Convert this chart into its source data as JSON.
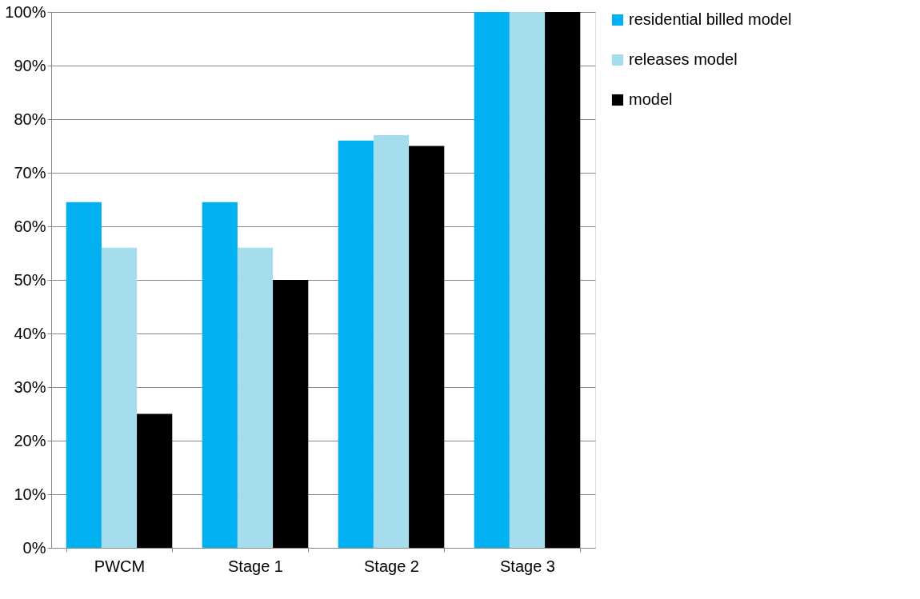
{
  "chart_data": {
    "type": "bar",
    "categories": [
      "PWCM",
      "Stage 1",
      "Stage 2",
      "Stage 3"
    ],
    "series": [
      {
        "name": "residential billed model",
        "color": "#00b0f0",
        "values": [
          64.5,
          64.5,
          76,
          100
        ]
      },
      {
        "name": "releases model",
        "color": "#a5dcee",
        "values": [
          56,
          56,
          77,
          100
        ]
      },
      {
        "name": "model",
        "color": "#000000",
        "values": [
          25,
          50,
          75,
          100
        ]
      }
    ],
    "ylim": [
      0,
      100
    ],
    "yticks": [
      {
        "value": 0,
        "label": "0%"
      },
      {
        "value": 10,
        "label": "10%"
      },
      {
        "value": 20,
        "label": "20%"
      },
      {
        "value": 30,
        "label": "30%"
      },
      {
        "value": 40,
        "label": "40%"
      },
      {
        "value": 50,
        "label": "50%"
      },
      {
        "value": 60,
        "label": "60%"
      },
      {
        "value": 70,
        "label": "70%"
      },
      {
        "value": 80,
        "label": "80%"
      },
      {
        "value": 90,
        "label": "90%"
      },
      {
        "value": 100,
        "label": "100%"
      }
    ],
    "grid": "y",
    "legend": "right"
  }
}
